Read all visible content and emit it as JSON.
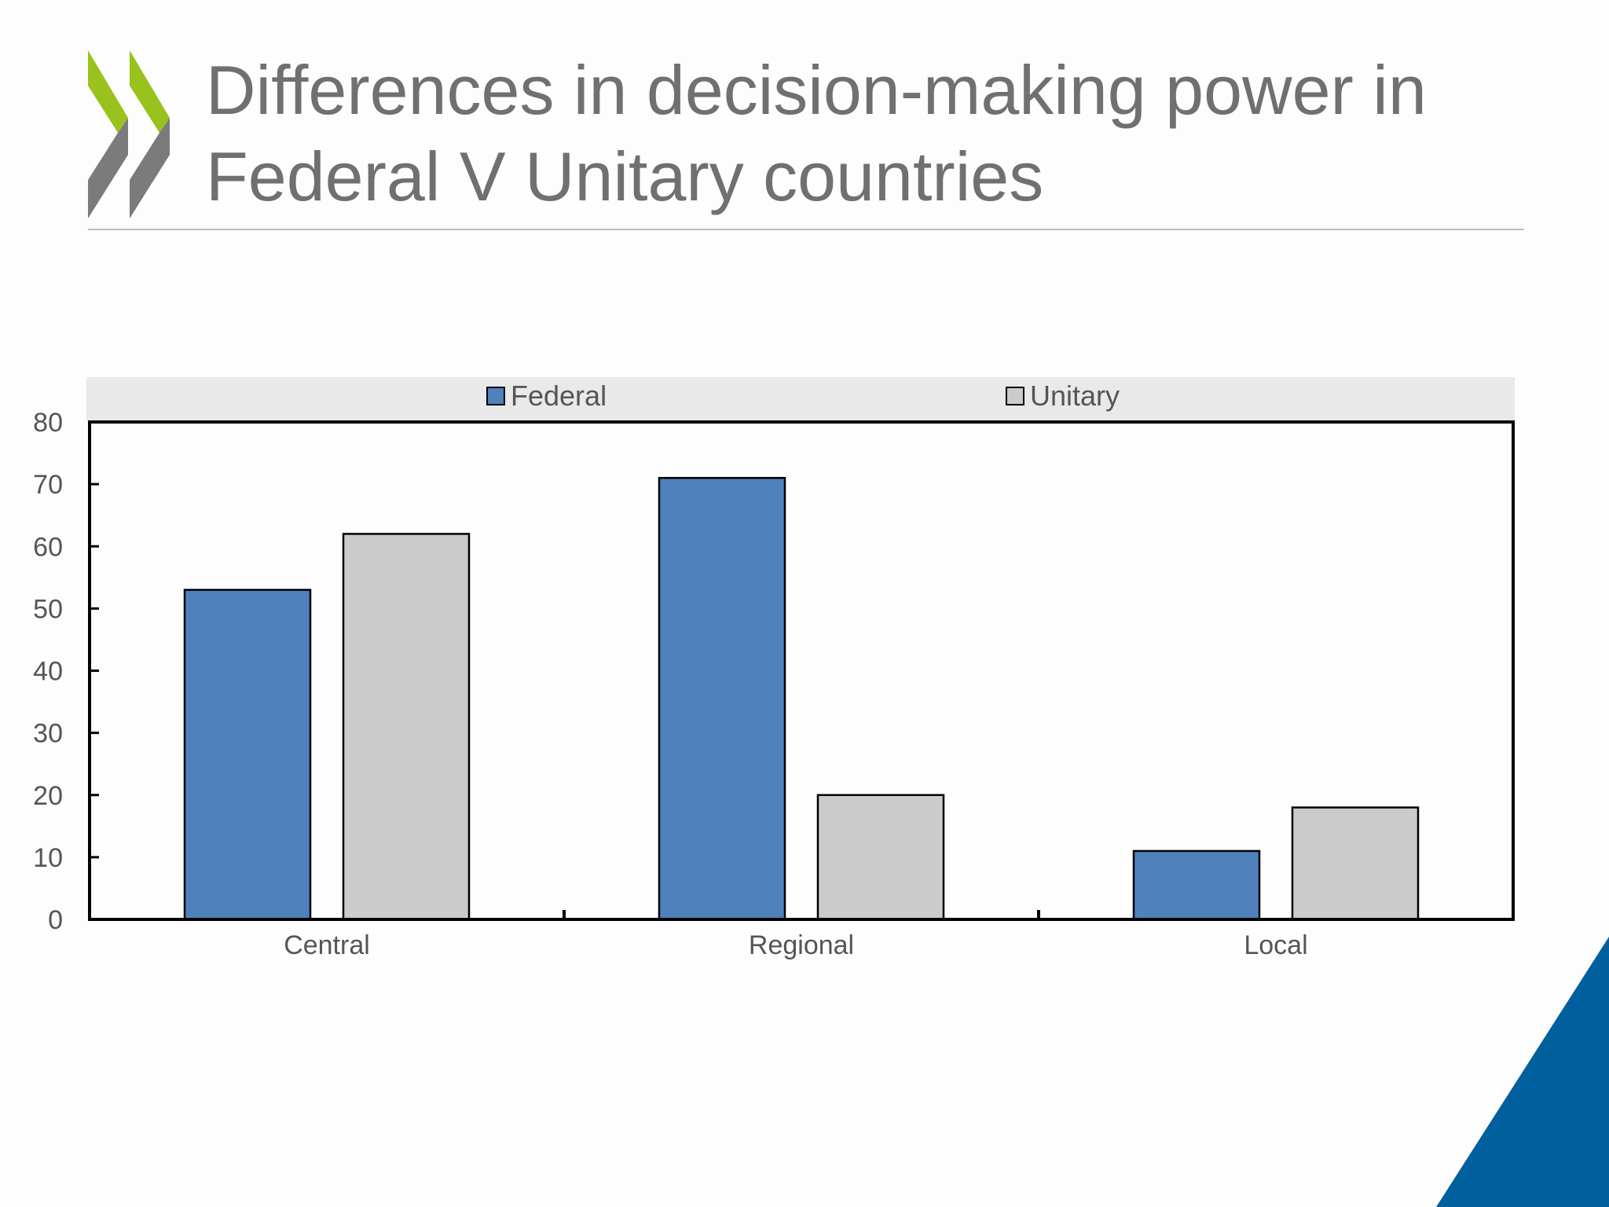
{
  "slide": {
    "title": "Differences in decision-making power in Federal V Unitary countries"
  },
  "chart_data": {
    "type": "bar",
    "title": "",
    "xlabel": "",
    "ylabel": "",
    "categories": [
      "Central",
      "Regional",
      "Local"
    ],
    "series": [
      {
        "name": "Federal",
        "values": [
          53,
          71,
          11
        ],
        "color": "#4f81bd"
      },
      {
        "name": "Unitary",
        "values": [
          62,
          20,
          18
        ],
        "color": "#cccbcc"
      }
    ],
    "ylim": [
      0,
      80
    ],
    "yticks": [
      0,
      10,
      20,
      30,
      40,
      50,
      60,
      70,
      80
    ],
    "grid": false,
    "legend_position": "top"
  },
  "colors": {
    "logo_green": "#99c21c",
    "logo_gray": "#7b7b7b",
    "corner_blue": "#00609e",
    "title_text": "#707070"
  },
  "icons": {
    "logo": "oecd-chevrons-icon",
    "corner": "corner-triangle-icon"
  }
}
